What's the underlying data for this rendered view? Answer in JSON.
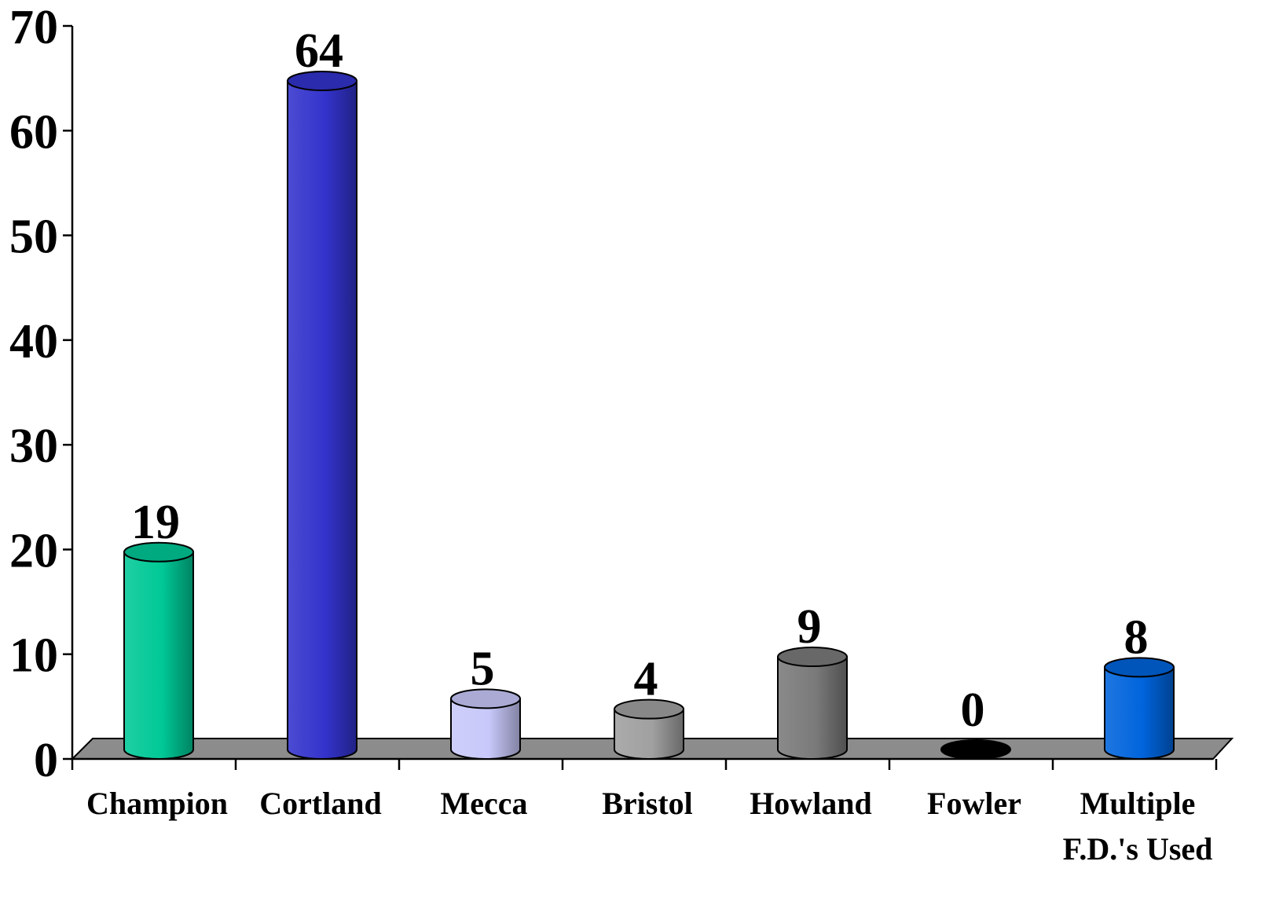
{
  "chart_data": {
    "type": "bar",
    "style": "3d-cylinder",
    "title": "",
    "xlabel": "",
    "ylabel": "",
    "ylim": [
      0,
      70
    ],
    "yticks": [
      0,
      10,
      20,
      30,
      40,
      50,
      60,
      70
    ],
    "grid": false,
    "legend": "none",
    "categories": [
      "Champion",
      "Cortland",
      "Mecca",
      "Bristol",
      "Howland",
      "Fowler",
      "Multiple F.D.'s Used"
    ],
    "category_lines": [
      [
        "Champion"
      ],
      [
        "Cortland"
      ],
      [
        "Mecca"
      ],
      [
        "Bristol"
      ],
      [
        "Howland"
      ],
      [
        "Fowler"
      ],
      [
        "Multiple",
        "F.D.'s Used"
      ]
    ],
    "values": [
      19,
      64,
      5,
      4,
      9,
      0,
      8
    ],
    "data_labels": [
      "19",
      "64",
      "5",
      "4",
      "9",
      "0",
      "8"
    ],
    "colors": [
      "#00C896",
      "#3333CC",
      "#C8C8FA",
      "#A0A0A0",
      "#7A7A7A",
      "#000000",
      "#0064DC"
    ],
    "floor_color": "#8C8C8C"
  }
}
